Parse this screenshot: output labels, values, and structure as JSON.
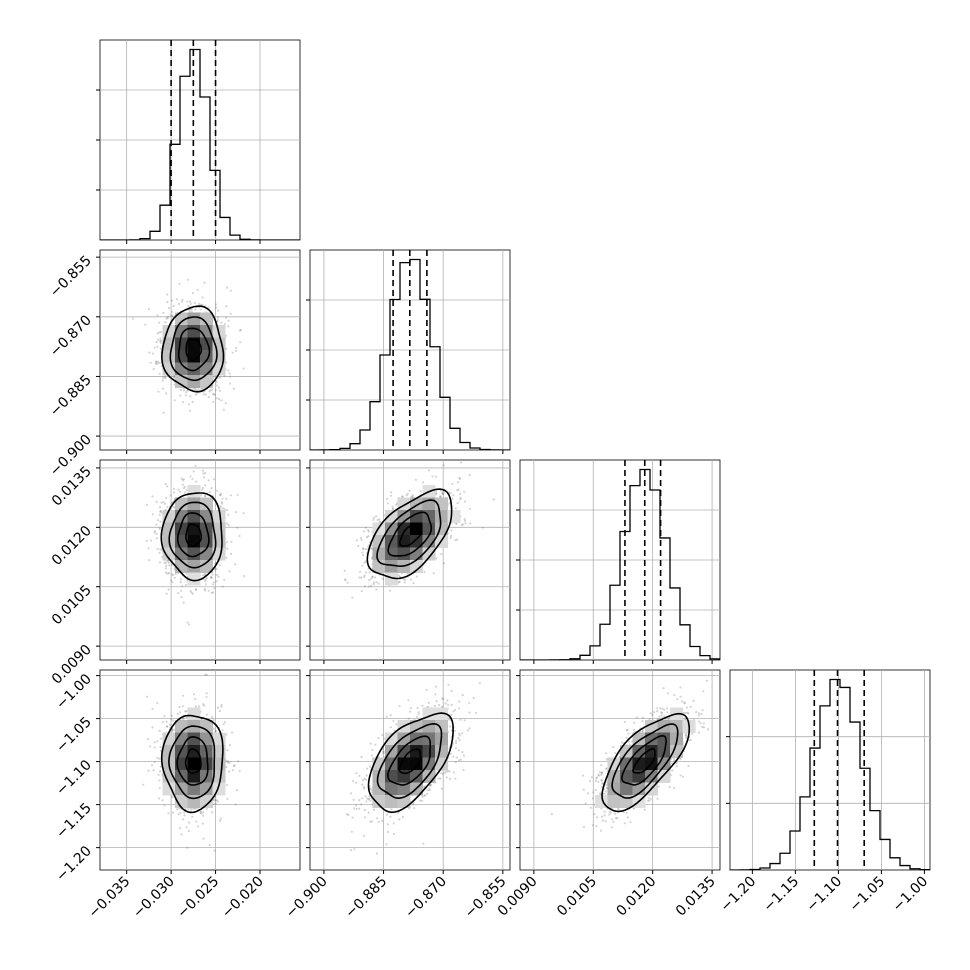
{
  "chart_data": {
    "type": "corner",
    "parameters": [
      {
        "range": [
          -0.038,
          -0.0155
        ],
        "mean": -0.0275,
        "sigma": 0.0017,
        "quantiles": [
          -0.03,
          -0.0275,
          -0.025
        ],
        "ticks": [
          -0.035,
          -0.03,
          -0.025,
          -0.02
        ],
        "tick_labels": [
          "−0.035",
          "−0.030",
          "−0.025",
          "−0.020"
        ],
        "hist_yticks": 3
      },
      {
        "range": [
          -0.9035,
          -0.8532
        ],
        "mean": -0.8782,
        "sigma": 0.0053,
        "quantiles": [
          -0.8826,
          -0.8784,
          -0.8741
        ],
        "ticks": [
          -0.9,
          -0.885,
          -0.87,
          -0.855
        ],
        "tick_labels": [
          "−0.900",
          "−0.885",
          "−0.870",
          "−0.855"
        ],
        "hist_yticks": 3
      },
      {
        "range": [
          0.00865,
          0.0137
        ],
        "mean": 0.0118,
        "sigma": 0.00055,
        "quantiles": [
          0.0113,
          0.0118,
          0.0122
        ],
        "ticks": [
          0.009,
          0.0105,
          0.012,
          0.0135
        ],
        "tick_labels": [
          "0.0090",
          "0.0105",
          "0.0120",
          "0.0135"
        ],
        "hist_yticks": 3
      },
      {
        "range": [
          -1.226,
          -0.9935
        ],
        "mean": -1.1,
        "sigma": 0.028,
        "quantiles": [
          -1.128,
          -1.101,
          -1.07
        ],
        "ticks": [
          -1.2,
          -1.15,
          -1.1,
          -1.05,
          -1.0
        ],
        "tick_labels": [
          "−1.20",
          "−1.15",
          "−1.10",
          "−1.05",
          "−1.00"
        ],
        "hist_yticks": 2
      }
    ],
    "correlations": [
      {
        "pair": [
          1,
          0
        ],
        "rho": 0.0
      },
      {
        "pair": [
          2,
          0
        ],
        "rho": 0.0
      },
      {
        "pair": [
          2,
          1
        ],
        "rho": 0.55
      },
      {
        "pair": [
          3,
          0
        ],
        "rho": 0.0
      },
      {
        "pair": [
          3,
          1
        ],
        "rho": 0.55
      },
      {
        "pair": [
          3,
          2
        ],
        "rho": 0.7
      }
    ],
    "contour_levels_sigma": [
      0.5,
      1.0,
      1.5,
      2.0
    ],
    "grid": true,
    "colors": {
      "line": "#000000",
      "points": "#7a7a7a",
      "grid": "#b0b0b0",
      "background": "#ffffff"
    }
  }
}
